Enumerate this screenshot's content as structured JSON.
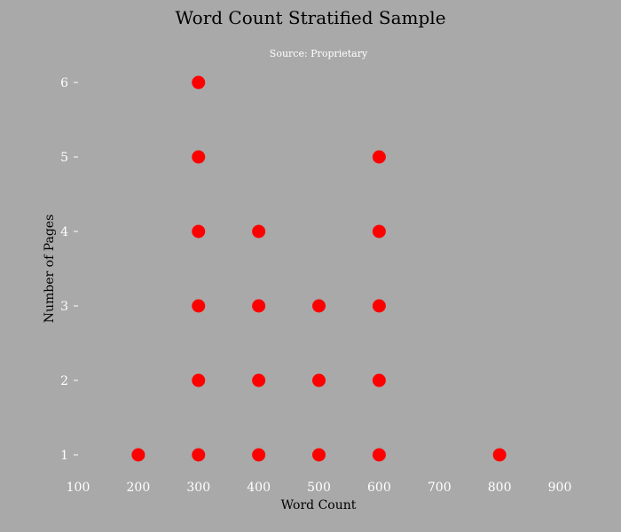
{
  "chart_data": {
    "type": "scatter",
    "title": "Word Count Stratified Sample",
    "subtitle": "Source: Proprietary",
    "xlabel": "Word Count",
    "ylabel": "Number of Pages",
    "xlim": [
      100,
      900
    ],
    "ylim": [
      1,
      6
    ],
    "xticks": [
      "100",
      "200",
      "300",
      "400",
      "500",
      "600",
      "700",
      "800",
      "900"
    ],
    "yticks": [
      "1",
      "2",
      "3",
      "4",
      "5",
      "6"
    ],
    "grid": false,
    "series": [
      {
        "points": [
          {
            "x": 200,
            "y": 1
          },
          {
            "x": 300,
            "y": 1
          },
          {
            "x": 300,
            "y": 2
          },
          {
            "x": 300,
            "y": 3
          },
          {
            "x": 300,
            "y": 4
          },
          {
            "x": 300,
            "y": 5
          },
          {
            "x": 300,
            "y": 6
          },
          {
            "x": 400,
            "y": 1
          },
          {
            "x": 400,
            "y": 2
          },
          {
            "x": 400,
            "y": 3
          },
          {
            "x": 400,
            "y": 4
          },
          {
            "x": 500,
            "y": 1
          },
          {
            "x": 500,
            "y": 2
          },
          {
            "x": 500,
            "y": 3
          },
          {
            "x": 600,
            "y": 1
          },
          {
            "x": 600,
            "y": 2
          },
          {
            "x": 600,
            "y": 3
          },
          {
            "x": 600,
            "y": 4
          },
          {
            "x": 600,
            "y": 5
          },
          {
            "x": 800,
            "y": 1
          }
        ]
      }
    ],
    "colors": {
      "background": "#a9a9a9",
      "marker": "#ff0000",
      "title": "#000000",
      "subtitle": "#ffffff",
      "axis_label": "#000000",
      "tick_label": "#ffffff"
    }
  }
}
